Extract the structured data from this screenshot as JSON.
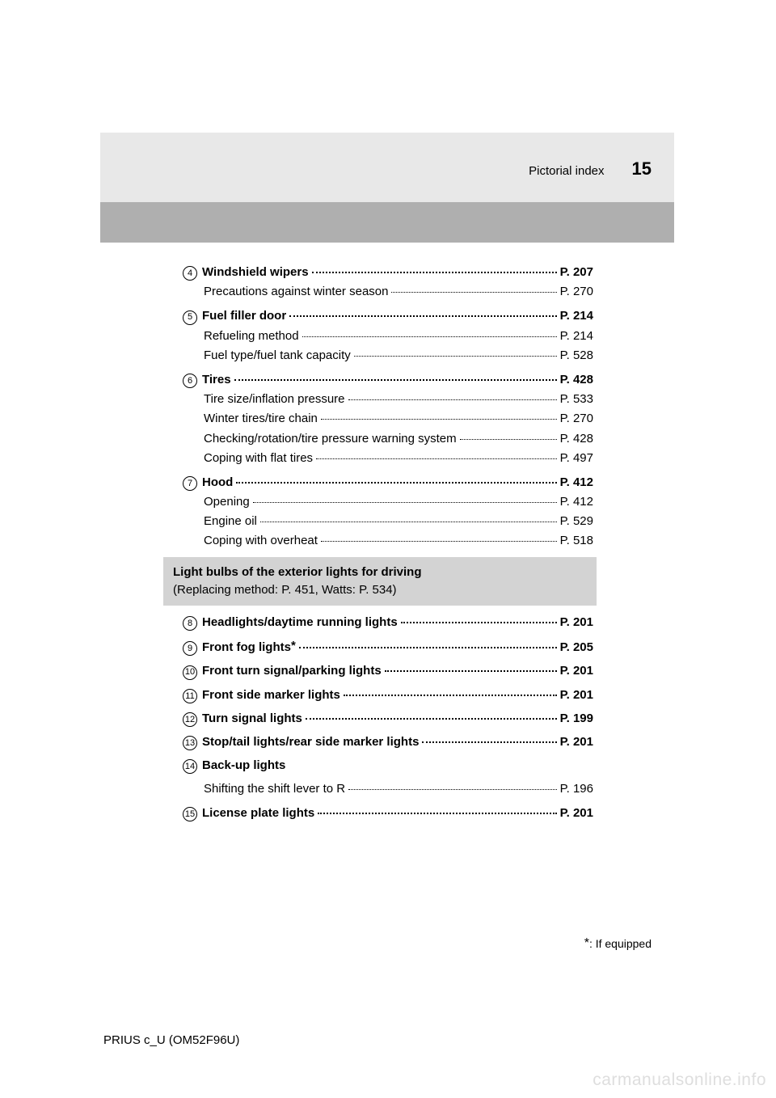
{
  "header": {
    "section": "Pictorial index",
    "page": "15"
  },
  "groups": [
    {
      "num": "4",
      "main": {
        "label": "Windshield wipers",
        "page": "P. 207"
      },
      "subs": [
        {
          "label": "Precautions against winter season",
          "page": "P. 270"
        }
      ]
    },
    {
      "num": "5",
      "main": {
        "label": "Fuel filler door",
        "page": "P. 214"
      },
      "subs": [
        {
          "label": "Refueling method",
          "page": "P. 214"
        },
        {
          "label": "Fuel type/fuel tank capacity",
          "page": "P. 528"
        }
      ]
    },
    {
      "num": "6",
      "main": {
        "label": "Tires",
        "page": "P. 428"
      },
      "subs": [
        {
          "label": "Tire size/inflation pressure",
          "page": "P. 533"
        },
        {
          "label": "Winter tires/tire chain",
          "page": "P. 270"
        },
        {
          "label": "Checking/rotation/tire pressure warning system",
          "page": "P. 428"
        },
        {
          "label": "Coping with flat tires",
          "page": "P. 497"
        }
      ]
    },
    {
      "num": "7",
      "main": {
        "label": "Hood",
        "page": "P. 412"
      },
      "subs": [
        {
          "label": "Opening",
          "page": "P. 412"
        },
        {
          "label": "Engine oil",
          "page": "P. 529"
        },
        {
          "label": "Coping with overheat",
          "page": "P. 518"
        }
      ]
    }
  ],
  "callout": {
    "title": "Light bulbs of the exterior lights for driving",
    "sub": "(Replacing method: P. 451, Watts: P. 534)"
  },
  "lights": [
    {
      "num": "8",
      "label": "Headlights/daytime running lights",
      "page": "P. 201"
    },
    {
      "num": "9",
      "label": "Front fog lights",
      "star": true,
      "page": "P. 205"
    },
    {
      "num": "10",
      "label": "Front turn signal/parking lights",
      "page": "P. 201"
    },
    {
      "num": "11",
      "label": "Front side marker lights",
      "page": "P. 201"
    },
    {
      "num": "12",
      "label": "Turn signal lights",
      "page": "P. 199"
    },
    {
      "num": "13",
      "label": "Stop/tail lights/rear side marker lights",
      "page": "P. 201"
    },
    {
      "num": "14",
      "label": "Back-up lights",
      "sub": {
        "label": "Shifting the shift lever to R",
        "page": "P. 196"
      }
    },
    {
      "num": "15",
      "label": "License plate lights",
      "page": "P. 201"
    }
  ],
  "footnote": {
    "star": "*",
    "text": ": If equipped"
  },
  "docid": "PRIUS c_U (OM52F96U)",
  "watermark": "carmanualsonline.info"
}
